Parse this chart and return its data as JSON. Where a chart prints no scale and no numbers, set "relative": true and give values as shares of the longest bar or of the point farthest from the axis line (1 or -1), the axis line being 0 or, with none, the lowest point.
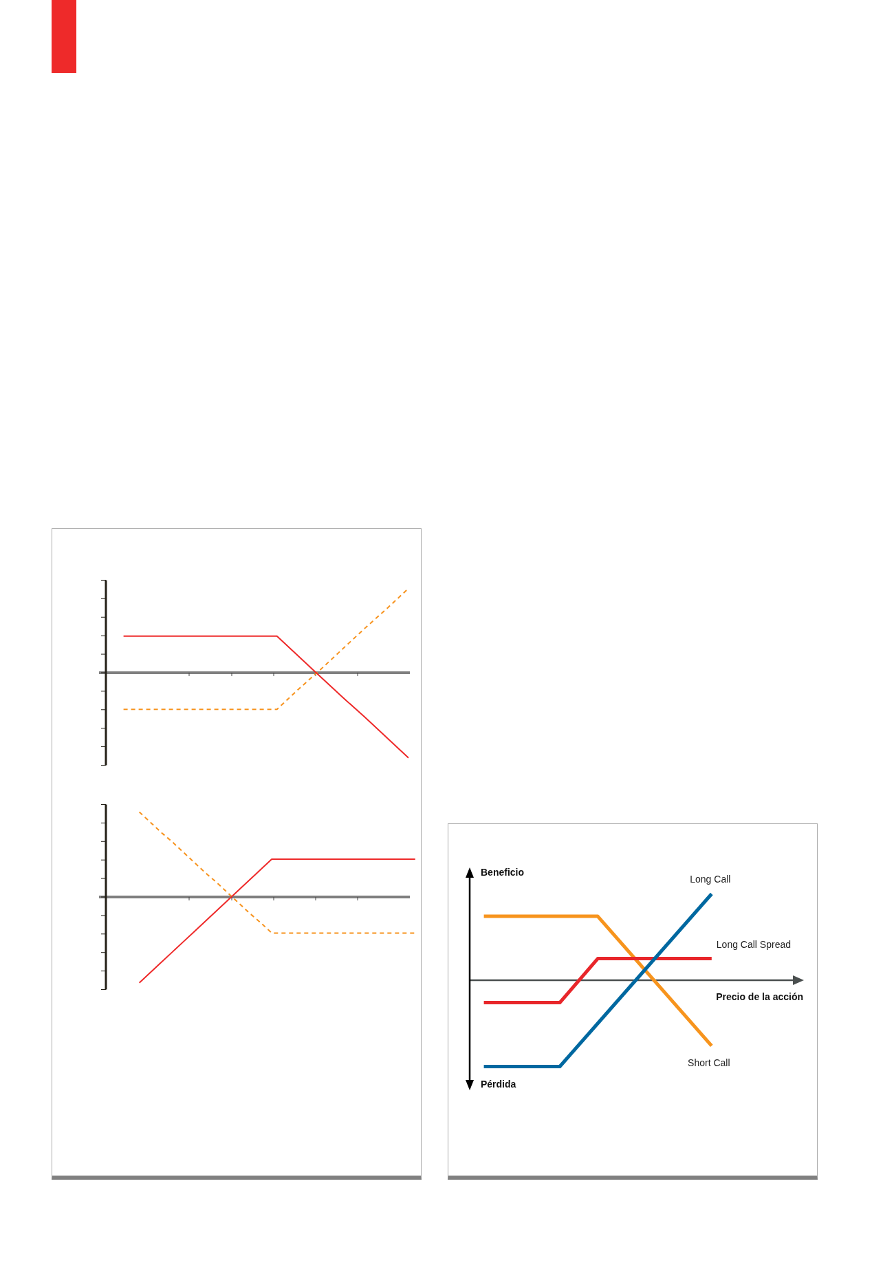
{
  "chart_data": [
    {
      "type": "line",
      "relative": true,
      "categories": [
        null,
        null,
        null,
        null,
        null,
        null,
        null,
        null,
        null,
        null,
        null,
        null,
        null,
        null
      ],
      "series": [
        {
          "color": "#ee2a2a",
          "values": [
            0.43,
            0.43,
            0.43,
            0.43,
            0.43,
            0.43,
            0.43,
            0.43,
            0.19,
            -0.05,
            -0.29,
            -0.52,
            -0.76,
            -1
          ]
        },
        {
          "color": "#f7931e",
          "line_style": "dashed",
          "values": [
            -0.43,
            -0.43,
            -0.43,
            -0.43,
            -0.43,
            -0.43,
            -0.43,
            -0.43,
            -0.19,
            0.04,
            0.28,
            0.52,
            0.75,
            0.99
          ]
        }
      ]
    },
    {
      "type": "line",
      "relative": true,
      "categories": [
        null,
        null,
        null,
        null,
        null,
        null,
        null,
        null,
        null,
        null,
        null,
        null,
        null,
        null,
        null,
        null,
        null,
        null,
        null,
        null,
        null,
        null,
        null,
        null,
        null,
        null
      ],
      "series": [
        {
          "color": "#ee2a2a",
          "values": [
            -1,
            -0.88,
            -0.76,
            -0.64,
            -0.52,
            -0.4,
            -0.28,
            -0.16,
            -0.04,
            0.08,
            0.2,
            0.32,
            0.44,
            0.44,
            0.44,
            0.44,
            0.44,
            0.44,
            0.44,
            0.44,
            0.44,
            0.44,
            0.44,
            0.44,
            0.44,
            0.44
          ]
        },
        {
          "color": "#f7931e",
          "line_style": "dashed",
          "values": [
            0.99,
            0.87,
            0.75,
            0.64,
            0.52,
            0.4,
            0.28,
            0.17,
            0.05,
            -0.07,
            -0.19,
            -0.3,
            -0.42,
            -0.42,
            -0.42,
            -0.42,
            -0.42,
            -0.42,
            -0.42,
            -0.42,
            -0.42,
            -0.42,
            -0.42,
            -0.42,
            -0.42,
            -0.42
          ]
        }
      ]
    },
    {
      "type": "line",
      "relative": true,
      "xlabel": "Precio de la acción",
      "annotations": [
        "Beneficio",
        "Pérdida"
      ],
      "categories": [
        null,
        null,
        null,
        null,
        null,
        null,
        null
      ],
      "series": [
        {
          "name": "Long Call",
          "color": "#0068a0",
          "values": [
            -1,
            -1,
            -1,
            -0.5,
            0,
            0.5,
            1
          ]
        },
        {
          "name": "Long Call Spread",
          "color": "#e8262a",
          "values": [
            -0.26,
            -0.26,
            -0.26,
            0.25,
            0.25,
            0.25,
            0.25
          ]
        },
        {
          "name": "Short Call",
          "color": "#f7941d",
          "values": [
            0.74,
            0.74,
            0.74,
            0.74,
            0.24,
            -0.26,
            -0.76
          ]
        }
      ]
    }
  ]
}
